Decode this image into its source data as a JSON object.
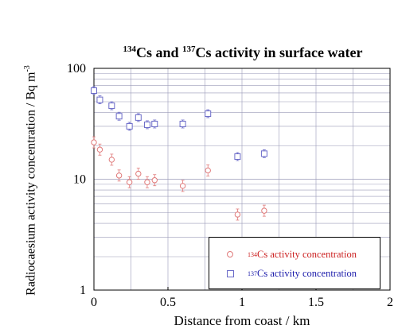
{
  "chart_data": {
    "type": "scatter",
    "title": {
      "n1": "134",
      "t1": "Cs and ",
      "n2": "137",
      "t2": "Cs activity in surface water"
    },
    "xlabel": "Distance from coast / km",
    "ylabel": {
      "text": "Radiocaesium activity concentration / Bq m",
      "exp": "-3"
    },
    "xlim": [
      0,
      2
    ],
    "ylim": [
      1,
      100
    ],
    "yscale": "log",
    "grid": true,
    "x_ticks": [
      "0",
      "0.5",
      "1",
      "1.5",
      "2"
    ],
    "y_ticks": [
      "1",
      "10",
      "100"
    ],
    "legend_position": "bottom-right",
    "series": [
      {
        "name": {
          "iso": "134",
          "text": "Cs activity concentration"
        },
        "color": "#e07a7a",
        "marker": "circle",
        "points": [
          {
            "x": 0.0,
            "y": 21.5
          },
          {
            "x": 0.04,
            "y": 18.5
          },
          {
            "x": 0.12,
            "y": 15.0
          },
          {
            "x": 0.17,
            "y": 10.8
          },
          {
            "x": 0.24,
            "y": 9.4
          },
          {
            "x": 0.3,
            "y": 11.2
          },
          {
            "x": 0.36,
            "y": 9.4
          },
          {
            "x": 0.41,
            "y": 9.8
          },
          {
            "x": 0.6,
            "y": 8.7
          },
          {
            "x": 0.77,
            "y": 12.0
          },
          {
            "x": 0.97,
            "y": 4.8
          },
          {
            "x": 1.15,
            "y": 5.2
          }
        ]
      },
      {
        "name": {
          "iso": "137",
          "text": "Cs activity concentration"
        },
        "color": "#6a6ac8",
        "marker": "square",
        "points": [
          {
            "x": 0.0,
            "y": 63.0
          },
          {
            "x": 0.04,
            "y": 52.0
          },
          {
            "x": 0.12,
            "y": 46.0
          },
          {
            "x": 0.17,
            "y": 37.0
          },
          {
            "x": 0.24,
            "y": 30.0
          },
          {
            "x": 0.3,
            "y": 36.0
          },
          {
            "x": 0.36,
            "y": 31.0
          },
          {
            "x": 0.41,
            "y": 31.5
          },
          {
            "x": 0.6,
            "y": 31.5
          },
          {
            "x": 0.77,
            "y": 39.0
          },
          {
            "x": 0.97,
            "y": 16.0
          },
          {
            "x": 1.15,
            "y": 17.0
          }
        ]
      }
    ]
  }
}
